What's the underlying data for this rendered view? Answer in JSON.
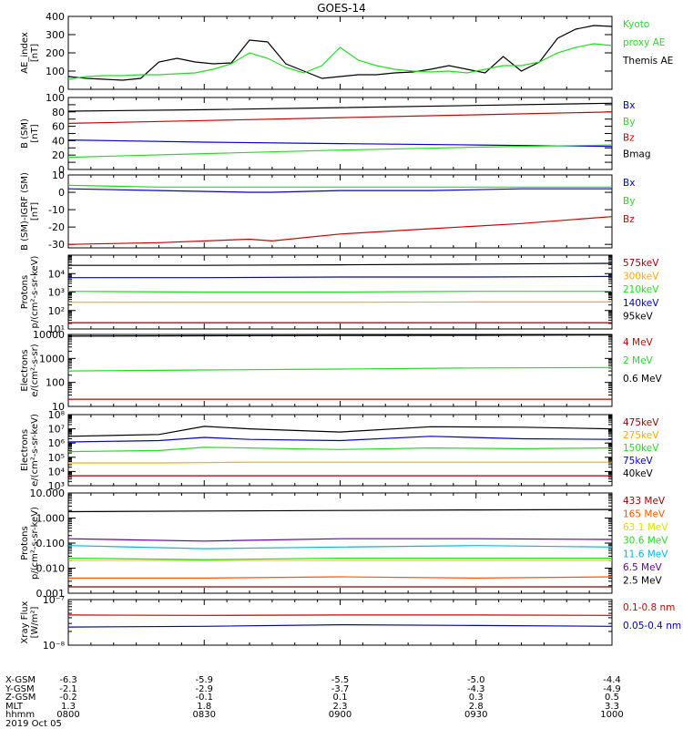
{
  "title": "GOES-14",
  "x_ticks": [
    "0800",
    "0830",
    "0900",
    "0930",
    "1000"
  ],
  "ephemeris": {
    "rows": [
      {
        "label": "X-GSM",
        "values": [
          "-6.3",
          "-5.9",
          "-5.5",
          "-5.0",
          "-4.4"
        ]
      },
      {
        "label": "Y-GSM",
        "values": [
          "-2.1",
          "-2.9",
          "-3.7",
          "-4.3",
          "-4.9"
        ]
      },
      {
        "label": "Z-GSM",
        "values": [
          "-0.2",
          "-0.1",
          "0.1",
          "0.3",
          "0.5"
        ]
      },
      {
        "label": "MLT",
        "values": [
          "1.3",
          "1.8",
          "2.3",
          "2.8",
          "3.3"
        ]
      },
      {
        "label": "hhmm",
        "values": [
          "0800",
          "0830",
          "0900",
          "0930",
          "1000"
        ]
      }
    ],
    "date": "2019 Oct 05"
  },
  "colors": {
    "black": "#000000",
    "red": "#cc0000",
    "green": "#22dd22",
    "blue": "#0000cc",
    "orange": "#ffaa00",
    "yellow": "#dddd00",
    "cyan": "#00bbdd",
    "purple": "#6600aa",
    "darkred": "#990000",
    "orangered": "#ff5500"
  },
  "chart_data": [
    {
      "type": "line",
      "id": "ae",
      "ylabel": [
        "AE_index",
        "[nT]"
      ],
      "scale": "linear",
      "ylim": [
        0,
        400
      ],
      "yticks": [
        0,
        100,
        200,
        300,
        400
      ],
      "ytick_labels": [
        "0",
        "100",
        "200",
        "300",
        "400"
      ],
      "x": [
        0,
        4,
        8,
        12,
        16,
        20,
        24,
        28,
        32,
        36,
        40,
        44,
        48,
        52,
        56,
        60,
        64,
        68,
        72,
        76,
        80,
        84,
        88,
        92,
        96,
        100,
        104,
        108,
        112,
        116,
        120
      ],
      "series": [
        {
          "name": "Themis AE",
          "color": "#000000",
          "values": [
            70,
            60,
            55,
            50,
            60,
            150,
            170,
            150,
            140,
            145,
            270,
            260,
            140,
            100,
            60,
            70,
            80,
            80,
            90,
            95,
            110,
            130,
            110,
            90,
            180,
            100,
            150,
            280,
            330,
            350,
            345
          ]
        },
        {
          "name": "Kyoto proxy AE",
          "color": "#22dd22",
          "values": [
            55,
            70,
            75,
            75,
            80,
            80,
            85,
            90,
            110,
            140,
            200,
            170,
            120,
            90,
            130,
            230,
            160,
            130,
            110,
            100,
            95,
            100,
            90,
            110,
            130,
            130,
            150,
            200,
            230,
            250,
            240
          ]
        }
      ],
      "legend": [
        {
          "text": "Kyoto",
          "color": "#22dd22"
        },
        {
          "text": "proxy AE",
          "color": "#22dd22"
        },
        {
          "text": "Themis AE",
          "color": "#000000"
        }
      ]
    },
    {
      "type": "line",
      "id": "bsm",
      "ylabel": [
        "B (SM)",
        "[nT]"
      ],
      "scale": "linear",
      "ylim": [
        0,
        100
      ],
      "yticks": [
        0,
        10,
        20,
        30,
        40,
        50,
        60,
        70,
        80,
        90,
        100
      ],
      "ytick_labels": [
        "0",
        "20",
        "40",
        "60",
        "80",
        "100"
      ],
      "ytick_label_vals": [
        0,
        20,
        40,
        60,
        80,
        100
      ],
      "x": [
        0,
        30,
        60,
        90,
        120
      ],
      "series": [
        {
          "name": "Bx",
          "color": "#0000cc",
          "values": [
            41,
            38,
            36,
            34,
            32
          ]
        },
        {
          "name": "By",
          "color": "#22dd22",
          "values": [
            17,
            22,
            27,
            31,
            34
          ]
        },
        {
          "name": "Bz",
          "color": "#cc0000",
          "values": [
            64,
            68,
            72,
            76,
            80
          ]
        },
        {
          "name": "Bmag",
          "color": "#000000",
          "values": [
            81,
            83,
            86,
            89,
            92
          ]
        }
      ],
      "legend": [
        {
          "text": "Bx",
          "color": "#0000cc"
        },
        {
          "text": "By",
          "color": "#22dd22"
        },
        {
          "text": "Bz",
          "color": "#cc0000"
        },
        {
          "text": "Bmag",
          "color": "#000000"
        }
      ]
    },
    {
      "type": "line",
      "id": "bigrf",
      "ylabel": [
        "B (SM)-IGRF (SM)",
        "[nT]"
      ],
      "scale": "linear",
      "ylim": [
        -32,
        10
      ],
      "yticks": [
        -30,
        -20,
        -10,
        0,
        10
      ],
      "ytick_labels": [
        "-30",
        "-20",
        "-10",
        "0",
        "10"
      ],
      "x": [
        0,
        20,
        40,
        45,
        60,
        80,
        100,
        120
      ],
      "series": [
        {
          "name": "Bx",
          "color": "#0000cc",
          "values": [
            2,
            1,
            0,
            0,
            1,
            1,
            2,
            2
          ]
        },
        {
          "name": "By",
          "color": "#22dd22",
          "values": [
            4,
            3,
            3,
            3,
            3,
            3,
            3,
            3
          ]
        },
        {
          "name": "Bz",
          "color": "#cc0000",
          "values": [
            -30,
            -29,
            -27,
            -28,
            -24,
            -21,
            -18,
            -14
          ]
        }
      ],
      "legend": [
        {
          "text": "Bx",
          "color": "#0000cc"
        },
        {
          "text": "By",
          "color": "#22dd22"
        },
        {
          "text": "Bz",
          "color": "#cc0000"
        }
      ]
    },
    {
      "type": "line",
      "id": "protons_keV",
      "ylabel": [
        "Protons",
        "p/(cm²-s-sr-keV)"
      ],
      "scale": "log",
      "ylim": [
        10,
        100000
      ],
      "yticks": [
        10,
        100,
        1000,
        10000
      ],
      "ytick_labels": [
        "10¹",
        "10²",
        "10³",
        "10⁴"
      ],
      "x": [
        0,
        30,
        60,
        90,
        120
      ],
      "series": [
        {
          "name": "575keV",
          "color": "#990000",
          "values": [
            22,
            22,
            22,
            22,
            22
          ]
        },
        {
          "name": "300keV",
          "color": "#ffaa00",
          "values": [
            280,
            280,
            280,
            290,
            290
          ]
        },
        {
          "name": "210keV",
          "color": "#22dd22",
          "values": [
            1100,
            1000,
            1000,
            1100,
            1100
          ]
        },
        {
          "name": "140keV",
          "color": "#0000cc",
          "values": [
            6000,
            6000,
            6500,
            6500,
            7000
          ]
        },
        {
          "name": "95keV",
          "color": "#000000",
          "values": [
            28000,
            28000,
            30000,
            33000,
            36000
          ]
        }
      ],
      "legend": [
        {
          "text": "575keV",
          "color": "#990000"
        },
        {
          "text": "300keV",
          "color": "#ffaa00"
        },
        {
          "text": "210keV",
          "color": "#22dd22"
        },
        {
          "text": "140keV",
          "color": "#0000cc"
        },
        {
          "text": "95keV",
          "color": "#000000"
        }
      ]
    },
    {
      "type": "line",
      "id": "electrons_MeV",
      "ylabel": [
        "Electrons",
        "e/(cm²-s-sr)"
      ],
      "scale": "log",
      "ylim": [
        10,
        10000
      ],
      "yticks": [
        10,
        100,
        1000,
        10000
      ],
      "ytick_labels": [
        "10",
        "100",
        "1000",
        "10000"
      ],
      "x": [
        0,
        30,
        60,
        90,
        120
      ],
      "series": [
        {
          "name": "4 MeV",
          "color": "#cc0000",
          "values": [
            20,
            20,
            20,
            20,
            20
          ]
        },
        {
          "name": "2 MeV",
          "color": "#22dd22",
          "values": [
            300,
            330,
            360,
            400,
            420
          ]
        },
        {
          "name": "0.6 MeV",
          "color": "#000000",
          "values": [
            8500,
            8800,
            9000,
            9200,
            9500
          ]
        }
      ],
      "legend": [
        {
          "text": "4 MeV",
          "color": "#cc0000"
        },
        {
          "text": "2 MeV",
          "color": "#22dd22"
        },
        {
          "text": "0.6 MeV",
          "color": "#000000"
        }
      ]
    },
    {
      "type": "line",
      "id": "electrons_keV",
      "ylabel": [
        "Electrons",
        "e/(cm²-s-sr-keV)"
      ],
      "scale": "log",
      "ylim": [
        1000,
        100000000
      ],
      "yticks": [
        1000,
        10000,
        100000,
        1000000,
        10000000,
        100000000
      ],
      "ytick_labels": [
        "10³",
        "10⁴",
        "10⁵",
        "10⁶",
        "10⁷",
        "10⁸"
      ],
      "x": [
        0,
        20,
        30,
        40,
        60,
        80,
        100,
        120
      ],
      "series": [
        {
          "name": "475keV",
          "color": "#990000",
          "values": [
            5000,
            5000,
            5000,
            5000,
            5000,
            5000,
            5000,
            5000
          ]
        },
        {
          "name": "275keV",
          "color": "#ffaa00",
          "values": [
            40000,
            40000,
            42000,
            45000,
            45000,
            45000,
            45000,
            45000
          ]
        },
        {
          "name": "150keV",
          "color": "#22dd22",
          "values": [
            250000,
            300000,
            500000,
            450000,
            350000,
            450000,
            400000,
            450000
          ]
        },
        {
          "name": "75keV",
          "color": "#0000cc",
          "values": [
            1200000,
            1500000,
            2500000,
            1800000,
            1500000,
            3000000,
            2000000,
            1800000
          ]
        },
        {
          "name": "40keV",
          "color": "#000000",
          "values": [
            3000000,
            4000000,
            15000000,
            10000000,
            6000000,
            14000000,
            13000000,
            10000000
          ]
        }
      ],
      "legend": [
        {
          "text": "475keV",
          "color": "#990000"
        },
        {
          "text": "275keV",
          "color": "#ffaa00"
        },
        {
          "text": "150keV",
          "color": "#22dd22"
        },
        {
          "text": "75keV",
          "color": "#0000cc"
        },
        {
          "text": "40keV",
          "color": "#000000"
        }
      ]
    },
    {
      "type": "line",
      "id": "protons_MeV",
      "ylabel": [
        "Protons",
        "p/(cm²-s-sr-keV)"
      ],
      "scale": "log",
      "ylim": [
        0.001,
        10
      ],
      "yticks": [
        0.001,
        0.01,
        0.1,
        1,
        10
      ],
      "ytick_labels": [
        "0.001",
        "0.010",
        "0.100",
        "1.000",
        "10.000"
      ],
      "x": [
        0,
        30,
        60,
        90,
        120
      ],
      "series": [
        {
          "name": "433 MeV",
          "color": "#990000",
          "values": [
            0.0018,
            0.0018,
            0.0018,
            0.0018,
            0.0018
          ]
        },
        {
          "name": "165 MeV",
          "color": "#ff5500",
          "values": [
            0.004,
            0.004,
            0.0045,
            0.004,
            0.0045
          ]
        },
        {
          "name": "63.1 MeV",
          "color": "#dddd00",
          "values": [
            0.02,
            0.02,
            0.02,
            0.02,
            0.02
          ]
        },
        {
          "name": "30.6 MeV",
          "color": "#22dd22",
          "values": [
            0.025,
            0.022,
            0.025,
            0.025,
            0.025
          ]
        },
        {
          "name": "11.6 MeV",
          "color": "#00bbdd",
          "values": [
            0.08,
            0.06,
            0.07,
            0.08,
            0.07
          ]
        },
        {
          "name": "6.5 MeV",
          "color": "#6600aa",
          "values": [
            0.15,
            0.12,
            0.15,
            0.15,
            0.14
          ]
        },
        {
          "name": "2.5 MeV",
          "color": "#000000",
          "values": [
            1.8,
            1.9,
            2.0,
            2.1,
            2.2
          ]
        }
      ],
      "legend": [
        {
          "text": "433 MeV",
          "color": "#990000"
        },
        {
          "text": "165 MeV",
          "color": "#ff5500"
        },
        {
          "text": "63.1 MeV",
          "color": "#dddd00"
        },
        {
          "text": "30.6 MeV",
          "color": "#22dd22"
        },
        {
          "text": "11.6 MeV",
          "color": "#00bbdd"
        },
        {
          "text": "6.5 MeV",
          "color": "#6600aa"
        },
        {
          "text": "2.5 MeV",
          "color": "#000000"
        }
      ]
    },
    {
      "type": "line",
      "id": "xray",
      "ylabel": [
        "Xray Flux",
        "[W/m²]"
      ],
      "scale": "log",
      "ylim": [
        1e-08,
        1e-07
      ],
      "yticks": [
        1e-08,
        1e-07
      ],
      "ytick_labels": [
        "10⁻⁸",
        "10⁻⁷"
      ],
      "x": [
        0,
        30,
        60,
        90,
        120
      ],
      "series": [
        {
          "name": "0.1-0.8 nm",
          "color": "#cc0000",
          "values": [
            4.6e-08,
            4.5e-08,
            4.6e-08,
            4.6e-08,
            4.5e-08
          ]
        },
        {
          "name": "0.05-0.4 nm",
          "color": "#0000cc",
          "values": [
            2.5e-08,
            2.6e-08,
            2.8e-08,
            2.7e-08,
            2.6e-08
          ]
        }
      ],
      "legend": [
        {
          "text": "0.1-0.8 nm",
          "color": "#cc0000"
        },
        {
          "text": "0.05-0.4 nm",
          "color": "#0000cc"
        }
      ]
    }
  ]
}
